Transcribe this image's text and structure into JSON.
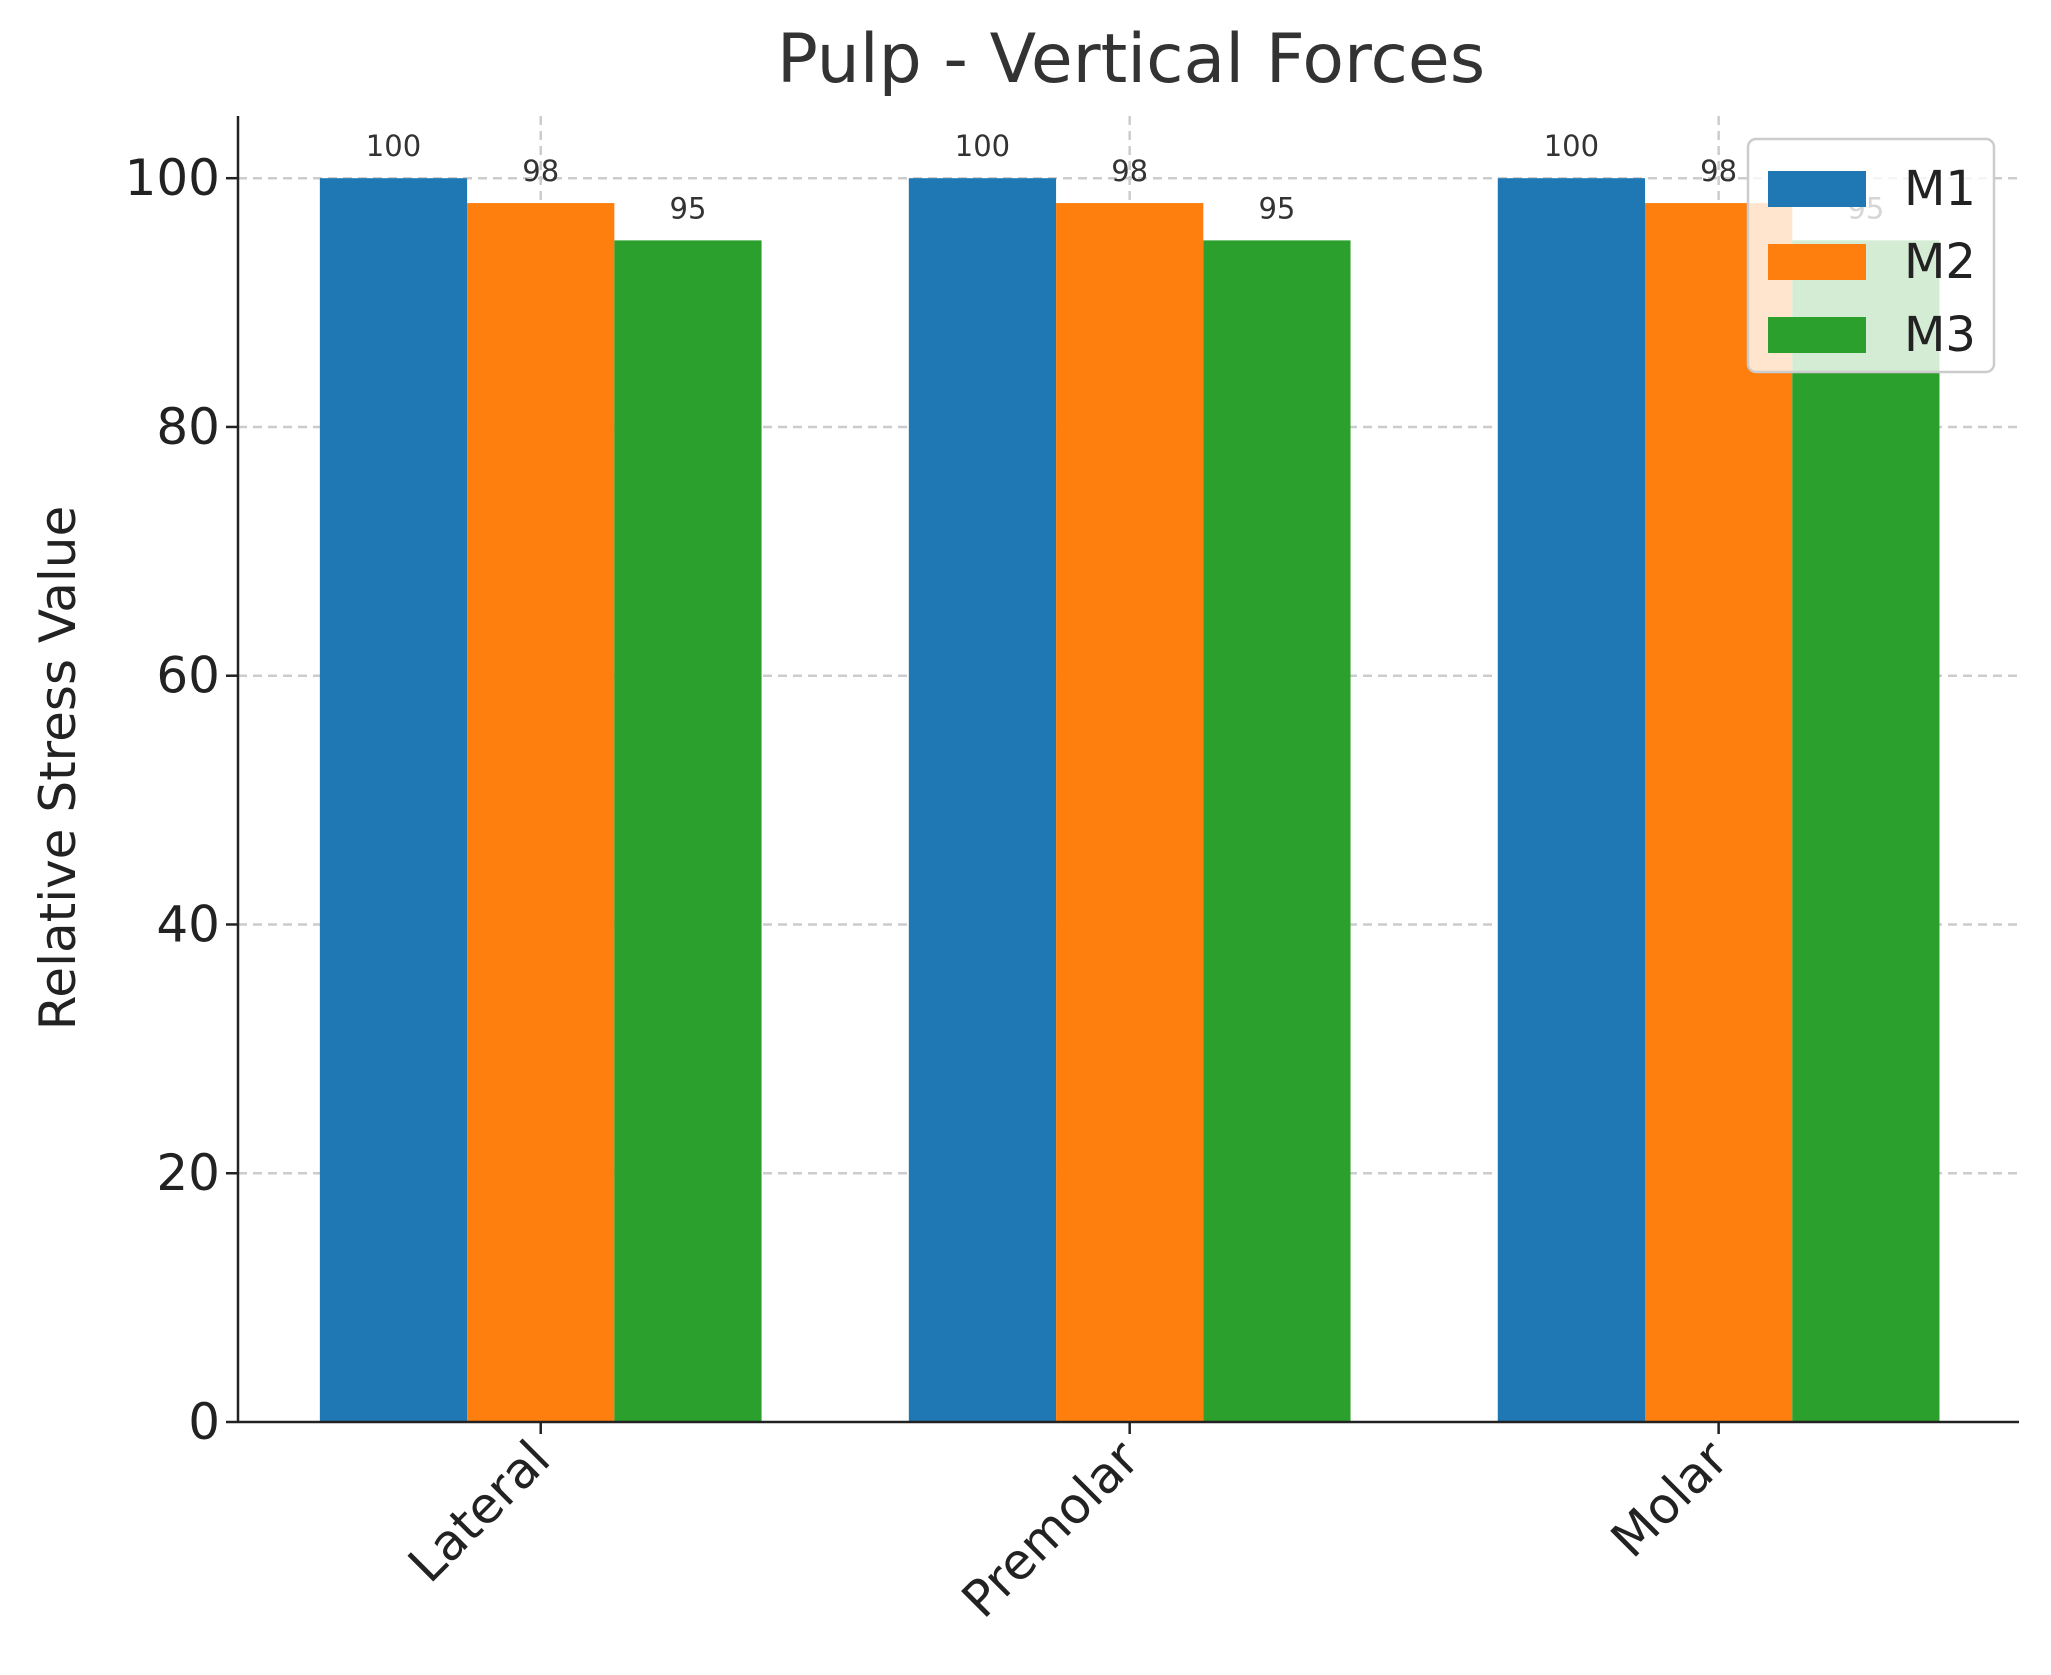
{
  "chart_data": {
    "type": "bar",
    "title": "Pulp - Vertical Forces",
    "xlabel": "",
    "ylabel": "Relative Stress Value",
    "categories": [
      "Lateral",
      "Premolar",
      "Molar"
    ],
    "series": [
      {
        "name": "M1",
        "values": [
          100,
          100,
          100
        ],
        "color": "#1f77b4"
      },
      {
        "name": "M2",
        "values": [
          98,
          98,
          98
        ],
        "color": "#ff7f0e"
      },
      {
        "name": "M3",
        "values": [
          95,
          95,
          95
        ],
        "color": "#2ca02c"
      }
    ],
    "ylim": [
      0,
      105
    ],
    "yticks": [
      0,
      20,
      40,
      60,
      80,
      100
    ],
    "grid": true,
    "grid_style": "dashed",
    "legend_placement": "top-right",
    "data_labels": true
  }
}
